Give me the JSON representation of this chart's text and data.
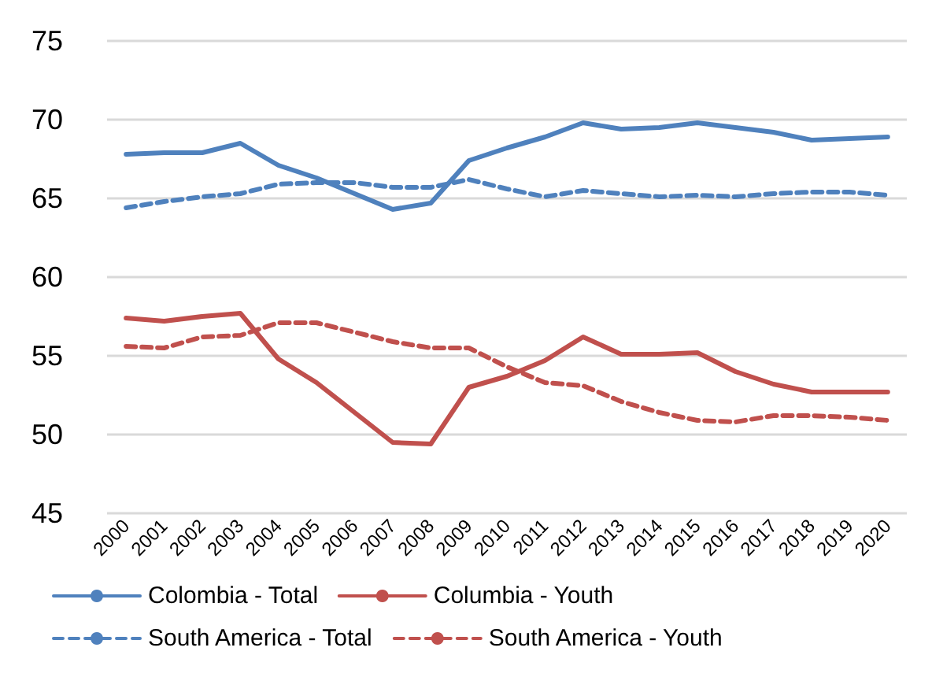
{
  "chart_data": {
    "type": "line",
    "categories": [
      "2000",
      "2001",
      "2002",
      "2003",
      "2004",
      "2005",
      "2006",
      "2007",
      "2008",
      "2009",
      "2010",
      "2011",
      "2012",
      "2013",
      "2014",
      "2015",
      "2016",
      "2017",
      "2018",
      "2019",
      "2020"
    ],
    "series": [
      {
        "name": "Colombia - Total",
        "color": "#4f81bd",
        "line_style": "solid",
        "values": [
          67.8,
          67.9,
          67.9,
          68.5,
          67.1,
          66.3,
          65.3,
          64.3,
          64.7,
          67.4,
          68.2,
          68.9,
          69.8,
          69.4,
          69.5,
          69.8,
          69.5,
          69.2,
          68.7,
          68.8,
          68.9
        ]
      },
      {
        "name": "Columbia - Youth",
        "color": "#c0504d",
        "line_style": "solid",
        "values": [
          57.4,
          57.2,
          57.5,
          57.7,
          54.8,
          53.3,
          51.4,
          49.5,
          49.4,
          53.0,
          53.7,
          54.7,
          56.2,
          55.1,
          55.1,
          55.2,
          54.0,
          53.2,
          52.7,
          52.7,
          52.7
        ]
      },
      {
        "name": "South America - Total",
        "color": "#4f81bd",
        "line_style": "dashed",
        "values": [
          64.4,
          64.8,
          65.1,
          65.3,
          65.9,
          66.0,
          66.0,
          65.7,
          65.7,
          66.2,
          65.6,
          65.1,
          65.5,
          65.3,
          65.1,
          65.2,
          65.1,
          65.3,
          65.4,
          65.4,
          65.2
        ]
      },
      {
        "name": "South America - Youth",
        "color": "#c0504d",
        "line_style": "dashed",
        "values": [
          55.6,
          55.5,
          56.2,
          56.3,
          57.1,
          57.1,
          56.5,
          55.9,
          55.5,
          55.5,
          54.3,
          53.3,
          53.1,
          52.1,
          51.4,
          50.9,
          50.8,
          51.2,
          51.2,
          51.1,
          50.9
        ]
      }
    ],
    "ylim": [
      45,
      75
    ],
    "yticks": [
      45,
      50,
      55,
      60,
      65,
      70,
      75
    ],
    "grid": "y",
    "legend": "bottom",
    "marker": "none"
  }
}
